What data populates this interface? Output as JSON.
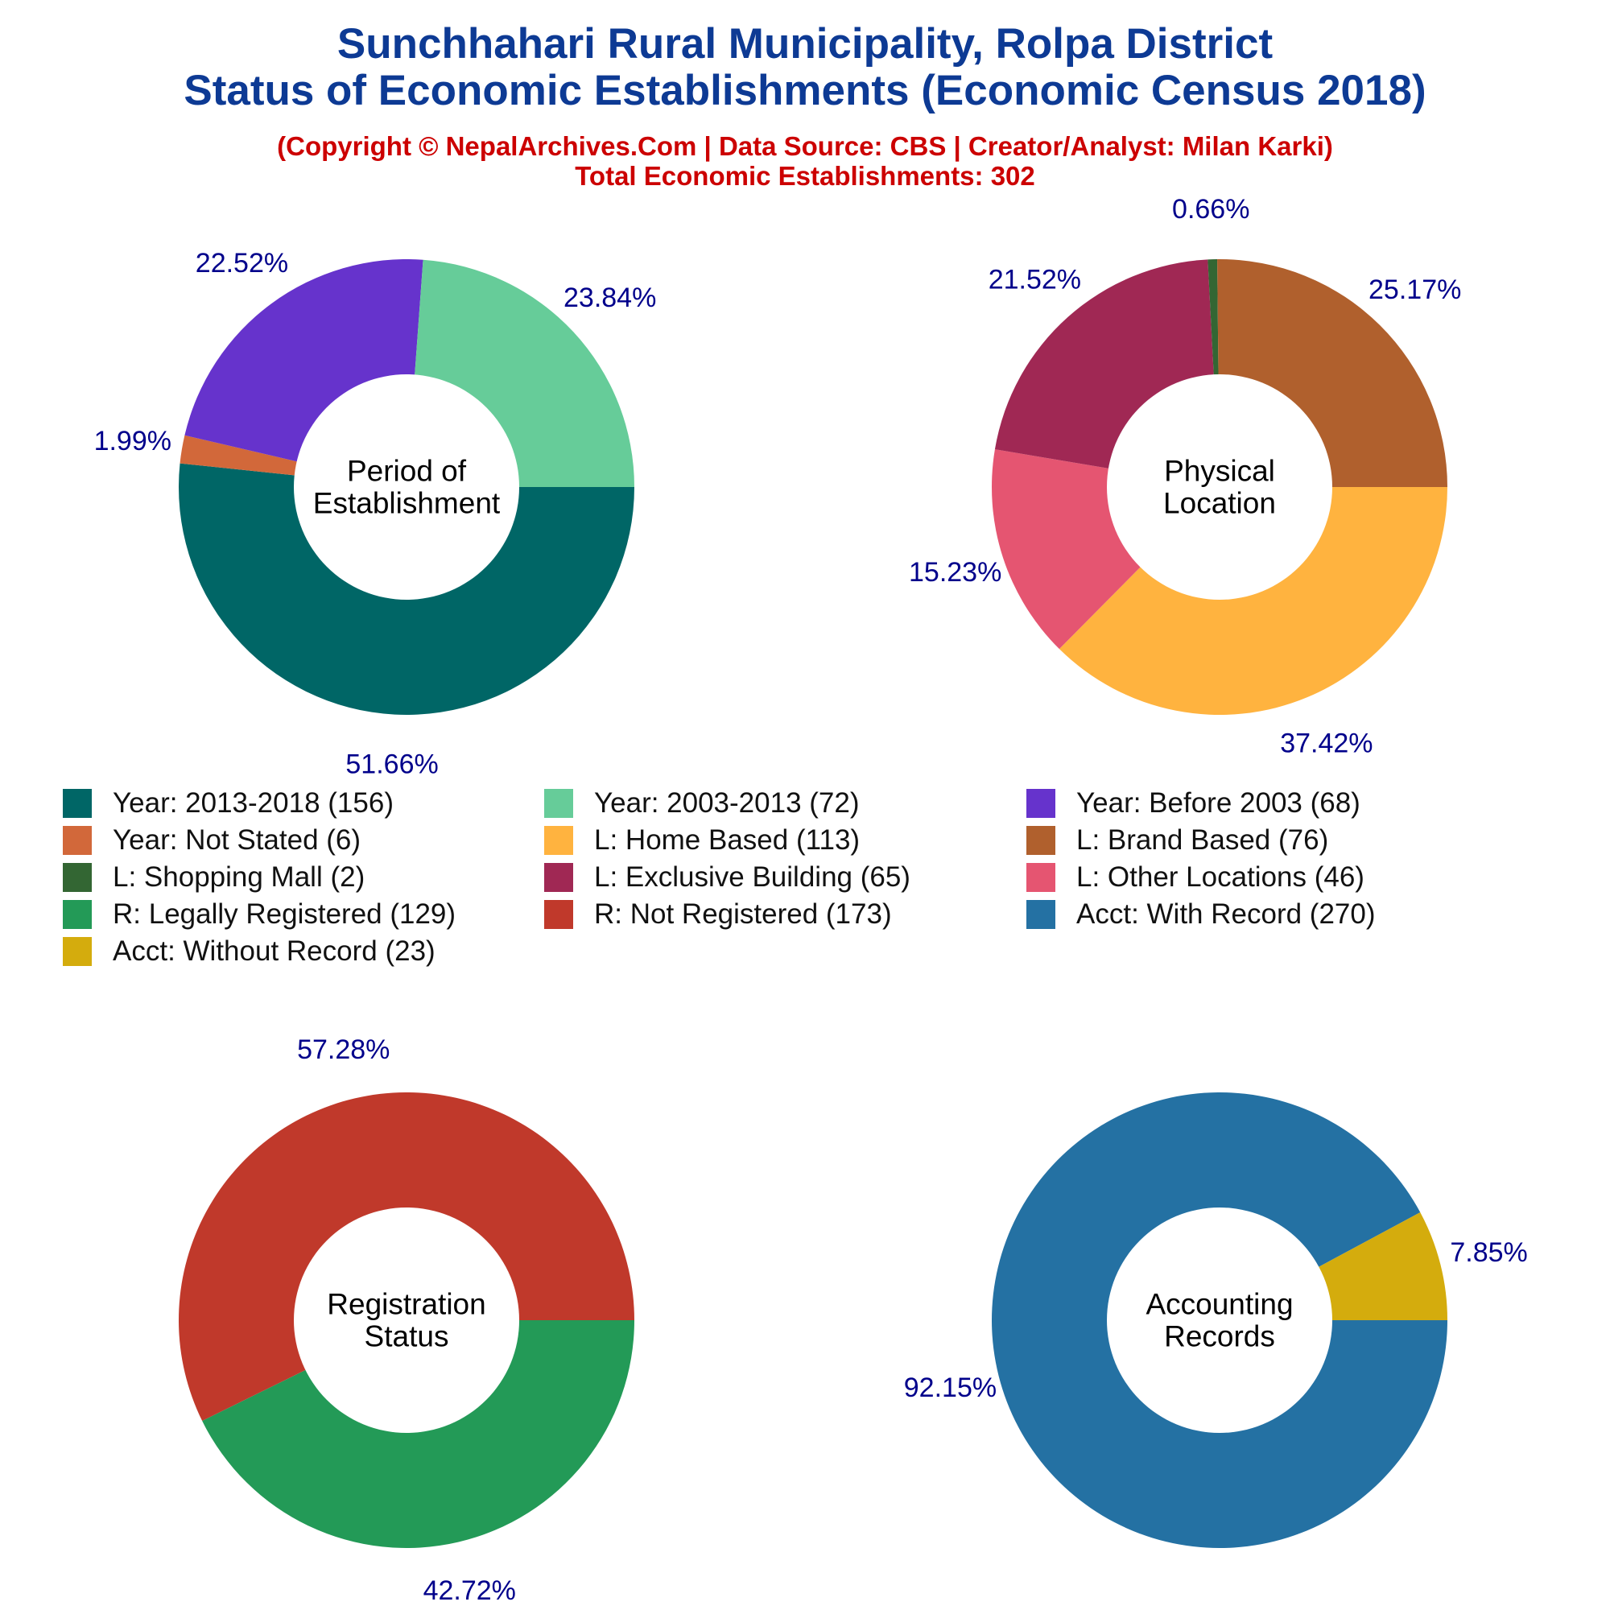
{
  "header": {
    "title_line1": "Sunchhahari Rural Municipality, Rolpa District",
    "title_line2": "Status of Economic Establishments (Economic Census 2018)",
    "subtitle_line1": "(Copyright © NepalArchives.Com | Data Source: CBS | Creator/Analyst: Milan Karki)",
    "subtitle_line2": "Total Economic Establishments: 302"
  },
  "chart_data": [
    {
      "type": "pie",
      "center_label": [
        "Period of",
        "Establishment"
      ],
      "slices": [
        {
          "label": "Year: 2013-2018",
          "value": 156,
          "percent_label": "51.66%",
          "color": "#006666"
        },
        {
          "label": "Year: Not Stated",
          "value": 6,
          "percent_label": "1.99%",
          "color": "#d2683a"
        },
        {
          "label": "Year: Before 2003",
          "value": 68,
          "percent_label": "22.52%",
          "color": "#6633cc"
        },
        {
          "label": "Year: 2003-2013",
          "value": 72,
          "percent_label": "23.84%",
          "color": "#66cc99"
        }
      ]
    },
    {
      "type": "pie",
      "center_label": [
        "Physical",
        "Location"
      ],
      "slices": [
        {
          "label": "L: Home Based",
          "value": 113,
          "percent_label": "37.42%",
          "color": "#ffb33f"
        },
        {
          "label": "L: Other Locations",
          "value": 46,
          "percent_label": "15.23%",
          "color": "#e55571"
        },
        {
          "label": "L: Exclusive Building",
          "value": 65,
          "percent_label": "21.52%",
          "color": "#a02854"
        },
        {
          "label": "L: Shopping Mall",
          "value": 2,
          "percent_label": "0.66%",
          "color": "#336633"
        },
        {
          "label": "L: Brand Based",
          "value": 76,
          "percent_label": "25.17%",
          "color": "#b0602d"
        }
      ]
    },
    {
      "type": "pie",
      "center_label": [
        "Registration",
        "Status"
      ],
      "slices": [
        {
          "label": "R: Legally Registered",
          "value": 129,
          "percent_label": "42.72%",
          "color": "#239a57"
        },
        {
          "label": "R: Not Registered",
          "value": 173,
          "percent_label": "57.28%",
          "color": "#c0392b"
        }
      ]
    },
    {
      "type": "pie",
      "center_label": [
        "Accounting",
        "Records"
      ],
      "slices": [
        {
          "label": "Acct: With Record",
          "value": 270,
          "percent_label": "92.15%",
          "color": "#2471a3"
        },
        {
          "label": "Acct: Without Record",
          "value": 23,
          "percent_label": "7.85%",
          "color": "#d4ac0d"
        }
      ]
    }
  ],
  "legend": [
    {
      "label": "Year: 2013-2018 (156)",
      "color": "#006666"
    },
    {
      "label": "Year: 2003-2013 (72)",
      "color": "#66cc99"
    },
    {
      "label": "Year: Before 2003 (68)",
      "color": "#6633cc"
    },
    {
      "label": "Year: Not Stated (6)",
      "color": "#d2683a"
    },
    {
      "label": "L: Home Based (113)",
      "color": "#ffb33f"
    },
    {
      "label": "L: Brand Based (76)",
      "color": "#b0602d"
    },
    {
      "label": "L: Shopping Mall (2)",
      "color": "#336633"
    },
    {
      "label": "L: Exclusive Building (65)",
      "color": "#a02854"
    },
    {
      "label": "L: Other Locations (46)",
      "color": "#e55571"
    },
    {
      "label": "R: Legally Registered (129)",
      "color": "#239a57"
    },
    {
      "label": "R: Not Registered (173)",
      "color": "#c0392b"
    },
    {
      "label": "Acct: With Record (270)",
      "color": "#2471a3"
    },
    {
      "label": "Acct: Without Record (23)",
      "color": "#d4ac0d"
    }
  ]
}
